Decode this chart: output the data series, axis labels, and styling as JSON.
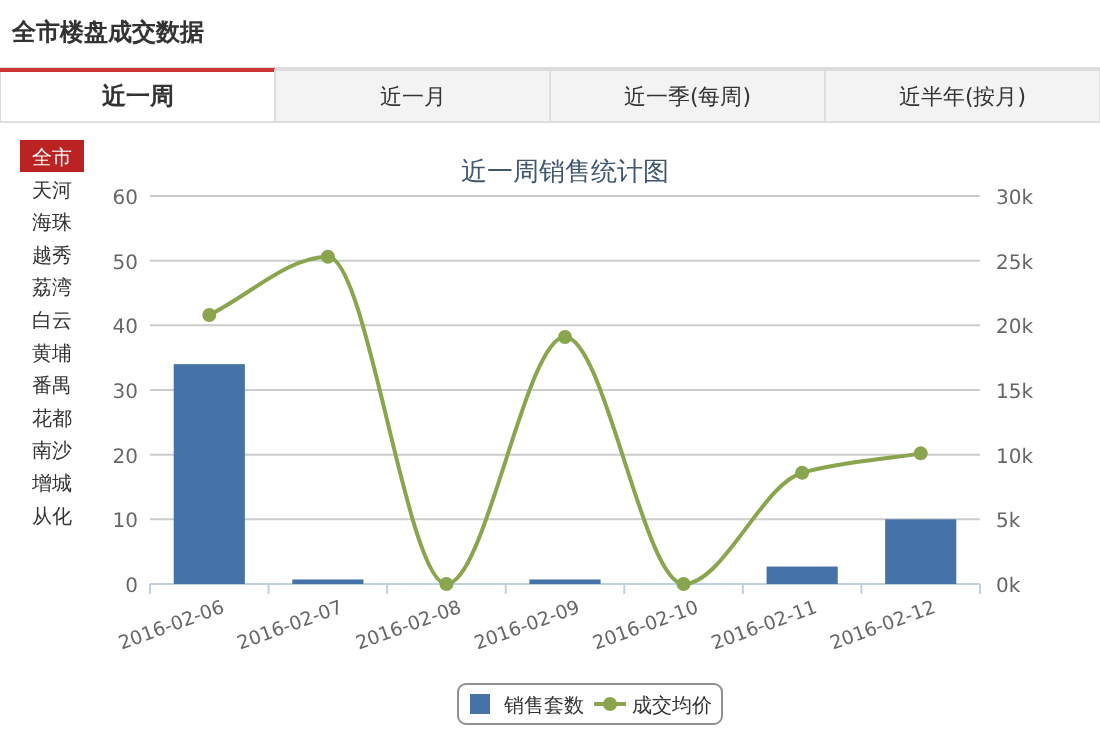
{
  "chart_data": {
    "type": "bar",
    "title": "近一周销售统计图",
    "categories": [
      "2016-02-06",
      "2016-02-07",
      "2016-02-08",
      "2016-02-09",
      "2016-02-10",
      "2016-02-11",
      "2016-02-12"
    ],
    "series": [
      {
        "name": "销售套数",
        "color": "#4572a7",
        "values": [
          34,
          0.7,
          0,
          0.7,
          0,
          2.7,
          10
        ]
      },
      {
        "name": "成交均价",
        "type": "line",
        "axis": "y2",
        "color": "#89a54e",
        "values": [
          20.8,
          25.3,
          0,
          19.1,
          0,
          8.6,
          10.1
        ]
      }
    ],
    "ylim": [
      0,
      60
    ],
    "yticks": [
      0,
      10,
      20,
      30,
      40,
      50,
      60
    ],
    "y2lim": [
      0,
      30
    ],
    "y2ticks": [
      {
        "value": 0,
        "label": "0k"
      },
      {
        "value": 5,
        "label": "5k"
      },
      {
        "value": 10,
        "label": "10k"
      },
      {
        "value": 15,
        "label": "15k"
      },
      {
        "value": 20,
        "label": "20k"
      },
      {
        "value": 25,
        "label": "25k"
      },
      {
        "value": 30,
        "label": "30k"
      }
    ],
    "grid": "y",
    "legend": "bottom",
    "marker": "circle",
    "annotations": [
      "全市楼盘成交数据",
      "近一周",
      "近一月",
      "近一季(每周)",
      "近半年(按月)",
      "全市",
      "天河",
      "海珠",
      "越秀",
      "荔湾",
      "白云",
      "黄埔",
      "番禺",
      "花都",
      "南沙",
      "增城",
      "从化"
    ]
  }
}
